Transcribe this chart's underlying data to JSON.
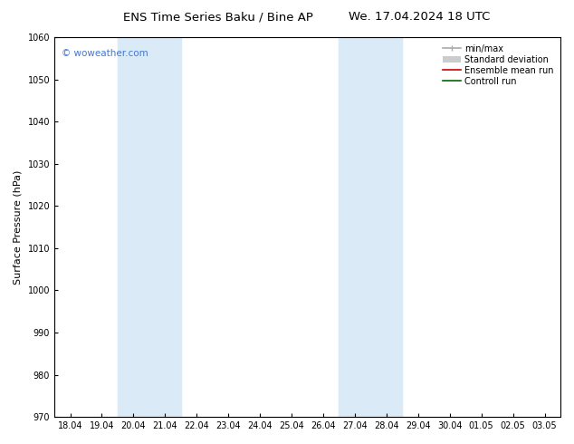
{
  "title_left": "ENS Time Series Baku / Bine AP",
  "title_right": "We. 17.04.2024 18 UTC",
  "ylabel": "Surface Pressure (hPa)",
  "ylim": [
    970,
    1060
  ],
  "yticks": [
    970,
    980,
    990,
    1000,
    1010,
    1020,
    1030,
    1040,
    1050,
    1060
  ],
  "xtick_labels": [
    "18.04",
    "19.04",
    "20.04",
    "21.04",
    "22.04",
    "23.04",
    "24.04",
    "25.04",
    "26.04",
    "27.04",
    "28.04",
    "29.04",
    "30.04",
    "01.05",
    "02.05",
    "03.05"
  ],
  "xtick_positions": [
    0,
    1,
    2,
    3,
    4,
    5,
    6,
    7,
    8,
    9,
    10,
    11,
    12,
    13,
    14,
    15
  ],
  "shaded_regions": [
    {
      "xmin": 2.0,
      "xmax": 4.0,
      "color": "#daeaf6"
    },
    {
      "xmin": 9.0,
      "xmax": 11.0,
      "color": "#daeaf6"
    }
  ],
  "watermark_text": "© woweather.com",
  "watermark_color": "#4477cc",
  "legend_entries": [
    {
      "label": "min/max",
      "color": "#aaaaaa",
      "lw": 1.2,
      "style": "errorbar"
    },
    {
      "label": "Standard deviation",
      "color": "#cccccc",
      "lw": 5,
      "style": "band"
    },
    {
      "label": "Ensemble mean run",
      "color": "#cc0000",
      "lw": 1.2,
      "style": "line"
    },
    {
      "label": "Controll run",
      "color": "#006600",
      "lw": 1.2,
      "style": "line"
    }
  ],
  "bg_color": "#ffffff",
  "spine_color": "#000000",
  "title_fontsize": 9.5,
  "ylabel_fontsize": 8,
  "tick_fontsize": 7,
  "legend_fontsize": 7,
  "watermark_fontsize": 7.5
}
